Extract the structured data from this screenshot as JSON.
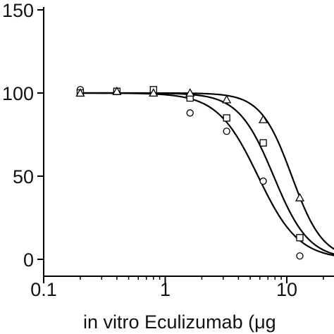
{
  "chart_data": {
    "type": "scatter",
    "title": "",
    "xlabel": "in vitro Eculizumab (μg",
    "ylabel": "",
    "x_scale": "log",
    "xlim": [
      0.1,
      30
    ],
    "ylim": [
      0,
      150
    ],
    "x_ticks": [
      0.1,
      1,
      10
    ],
    "x_tick_labels": [
      "0.1",
      "1",
      "10"
    ],
    "y_ticks": [
      0,
      50,
      100,
      150
    ],
    "y_tick_labels": [
      "0",
      "50",
      "100",
      "150"
    ],
    "grid": false,
    "legend": "none",
    "series": [
      {
        "marker": "circle",
        "x": [
          0.2,
          0.4,
          0.8,
          1.6,
          3.2,
          6.4,
          12.8
        ],
        "y": [
          102,
          101,
          100,
          88,
          77,
          47,
          2
        ],
        "fit": {
          "top": 100,
          "bottom": 0,
          "ec50": 5.8,
          "hill": 2.6
        }
      },
      {
        "marker": "square",
        "x": [
          0.2,
          0.4,
          0.8,
          1.6,
          3.2,
          6.4,
          12.8
        ],
        "y": [
          100,
          101,
          102,
          97,
          85,
          70,
          13
        ],
        "fit": {
          "top": 100,
          "bottom": 0,
          "ec50": 7.8,
          "hill": 3.0
        }
      },
      {
        "marker": "triangle",
        "x": [
          0.2,
          0.4,
          0.8,
          1.6,
          3.2,
          6.4,
          12.8
        ],
        "y": [
          100,
          101,
          100,
          100,
          96,
          84,
          37
        ],
        "fit": {
          "top": 100,
          "bottom": 0,
          "ec50": 11.0,
          "hill": 3.4
        }
      }
    ]
  }
}
